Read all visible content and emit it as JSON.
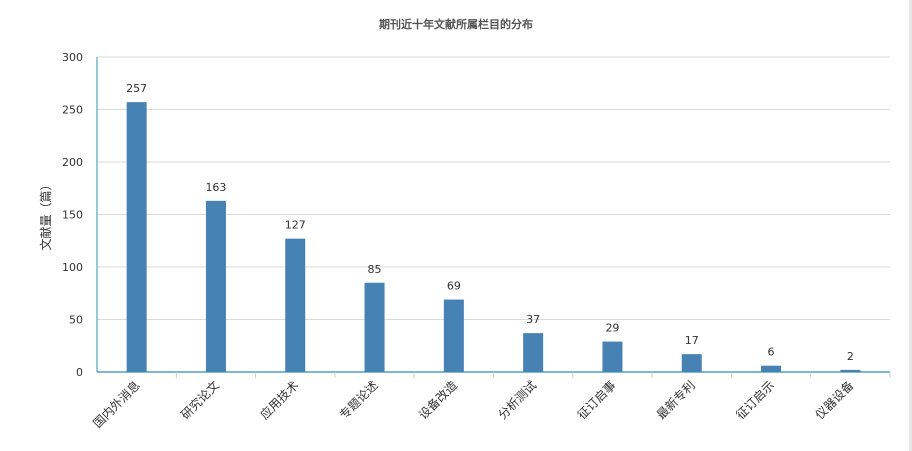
{
  "chart_data": {
    "type": "bar",
    "title": "期刊近十年文献所属栏目的分布",
    "xlabel": "",
    "ylabel": "文献量（篇）",
    "categories": [
      "国内外消息",
      "研究论文",
      "应用技术",
      "专题论述",
      "设备改造",
      "分析测试",
      "征订启事",
      "最新专利",
      "征订启示",
      "仪器设备"
    ],
    "values": [
      257,
      163,
      127,
      85,
      69,
      37,
      29,
      17,
      6,
      2
    ],
    "ylim": [
      0,
      300
    ],
    "yticks": [
      0,
      50,
      100,
      150,
      200,
      250,
      300
    ],
    "grid": true,
    "bar_color": "#4682b4",
    "axis_color": "#2f8fb0"
  }
}
